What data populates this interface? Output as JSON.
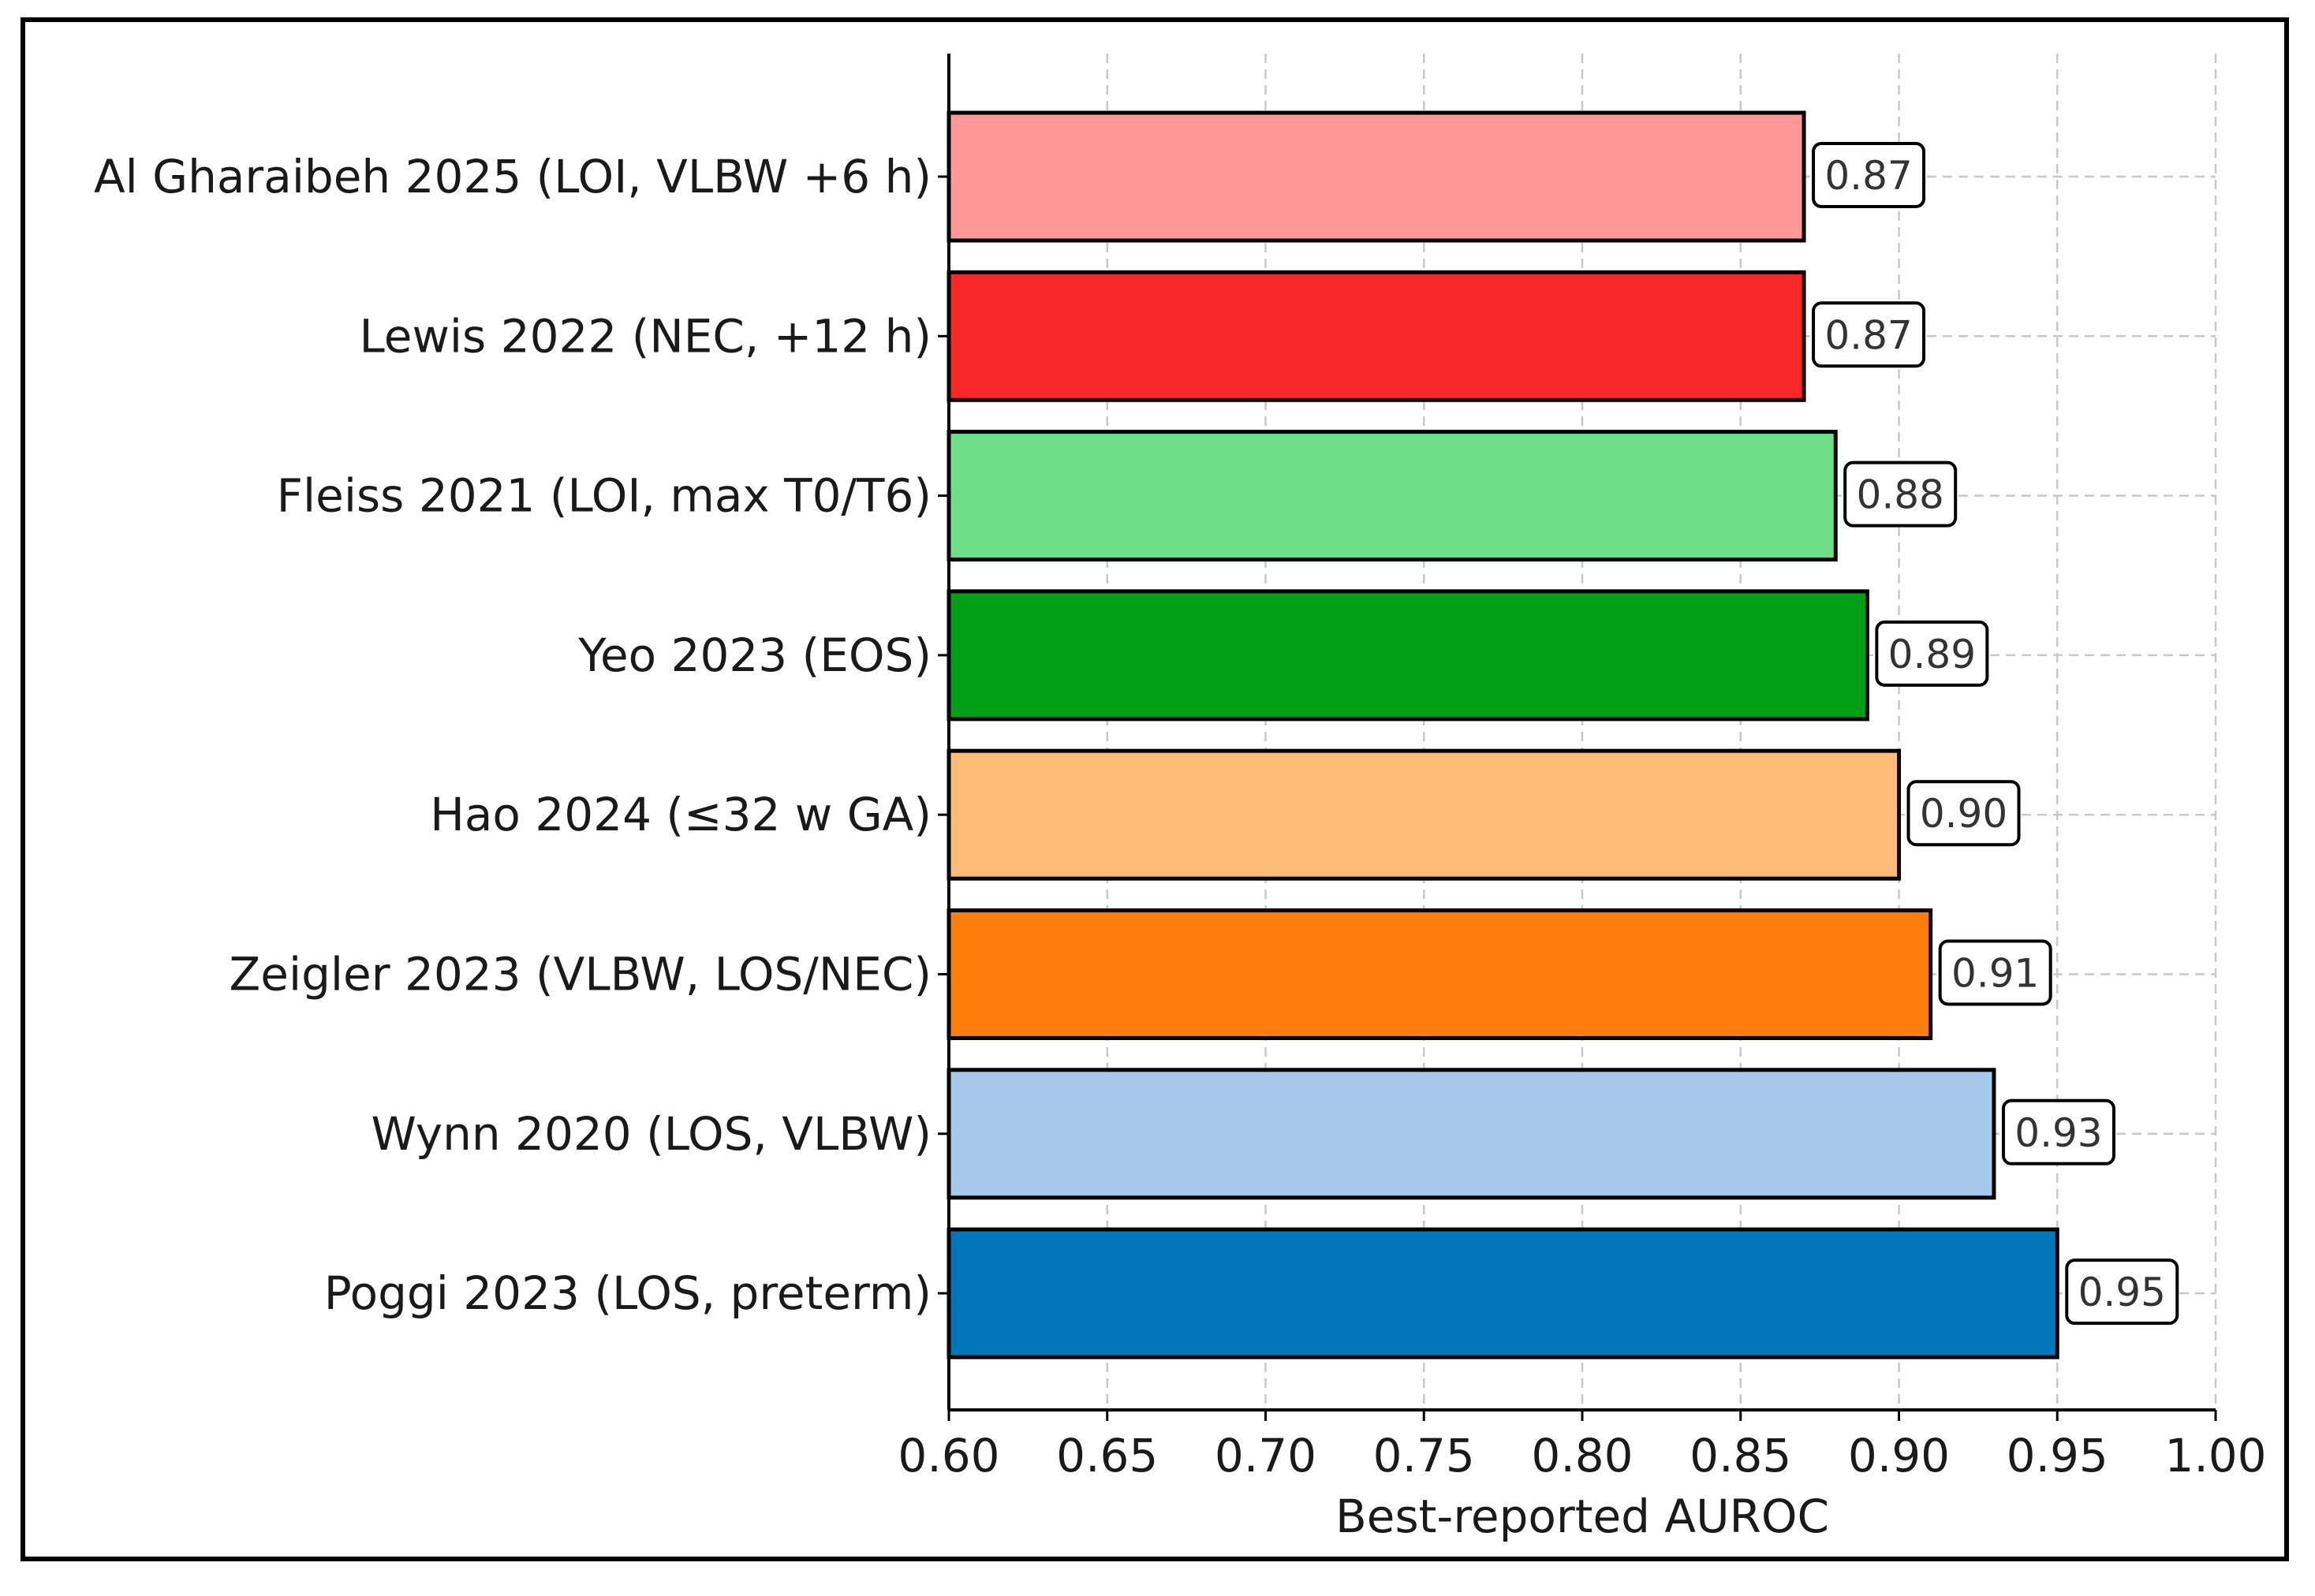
{
  "chart_data": {
    "type": "bar",
    "orientation": "horizontal",
    "title": "",
    "xlabel": "Best-reported AUROC",
    "ylabel": "",
    "xlim": [
      0.6,
      1.0
    ],
    "xticks": [
      "0.60",
      "0.65",
      "0.70",
      "0.75",
      "0.80",
      "0.85",
      "0.90",
      "0.95",
      "1.00"
    ],
    "grid": true,
    "categories": [
      "Al Gharaibeh 2025 (LOI, VLBW +6 h)",
      "Lewis 2022 (NEC, +12 h)",
      "Fleiss 2021 (LOI, max T0/T6)",
      "Yeo 2023 (EOS)",
      "Hao 2024 (≤32 w GA)",
      "Zeigler 2023 (VLBW, LOS/NEC)",
      "Wynn 2020 (LOS, VLBW)",
      "Poggi 2023 (LOS, preterm)"
    ],
    "values": [
      0.87,
      0.87,
      0.88,
      0.89,
      0.9,
      0.91,
      0.93,
      0.95
    ],
    "value_labels": [
      "0.87",
      "0.87",
      "0.88",
      "0.89",
      "0.90",
      "0.91",
      "0.93",
      "0.95"
    ],
    "colors": [
      "#ff9896",
      "#f82828",
      "#6ede88",
      "#00a016",
      "#ffbb78",
      "#ff7f0e",
      "#a6c8ea",
      "#0077bb"
    ]
  }
}
